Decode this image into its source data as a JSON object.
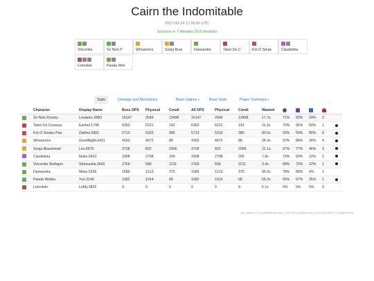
{
  "header": {
    "title": "Cairn the Indomitable",
    "timestamp": "2017-03-14 17:26:02 UTC",
    "result": "Success in 7 minutes 29.0 seconds"
  },
  "players": [
    {
      "name": "Vincentia",
      "icons": [
        "#6fa94e",
        "#8a8a8a"
      ]
    },
    {
      "name": "Sir Nick P",
      "icons": [
        "#6fa94e",
        "#8a8a8a"
      ]
    },
    {
      "name": "Whoarriors",
      "icons": [
        "#e0a43a"
      ]
    },
    {
      "name": "Sonja Brav",
      "icons": [
        "#e0a43a",
        "#8a8a8a"
      ]
    },
    {
      "name": "Dareandra",
      "icons": [
        "#6fa94e"
      ]
    },
    {
      "name": "Talon De C",
      "icons": [
        "#b0446a"
      ]
    },
    {
      "name": "Kot O Smak",
      "icons": [
        "#c94a4a"
      ]
    },
    {
      "name": "Claudishia",
      "icons": [
        "#b05bc4",
        "#8a8a8a"
      ]
    },
    {
      "name": "Lemolelo",
      "icons": [
        "#b05050",
        "#8a8a8a",
        "#8a8a8a"
      ]
    },
    {
      "name": "Panda Wiel",
      "icons": [
        "#6fa94e",
        "#8a8a8a"
      ]
    }
  ],
  "tabs": [
    {
      "label": "Stats",
      "active": true
    },
    {
      "label": "Damage and Mechanics",
      "active": false
    },
    {
      "label": "Boon Uptime",
      "active": false,
      "dropdown": true
    },
    {
      "label": "Boon Stats",
      "active": false
    },
    {
      "label": "Player Summary",
      "active": false,
      "dropdown": true
    }
  ],
  "table": {
    "columns": [
      "Character",
      "Display Name",
      "Boss DPS",
      "Physical",
      "Condi",
      "All DPS",
      "Physical",
      "Condi",
      "Wasted"
    ],
    "icon_columns": [
      "dodge-icon",
      "might-icon",
      "fury-icon",
      "down-icon"
    ],
    "rows": [
      {
        "color": "#6fa94e",
        "cells": [
          "Sir Nick Pyszny",
          "Leniwiec.6983",
          "16147",
          "2649",
          "13498",
          "16147",
          "2649",
          "13498",
          "17.7s",
          "71%",
          "83%",
          "24%",
          "3"
        ],
        "dead": false
      },
      {
        "color": "#b0446a",
        "cells": [
          "Talon De Couteau",
          "Ezehel.1748",
          "6363",
          "6221",
          "142",
          "6363",
          "6221",
          "142",
          "11.2s",
          "70%",
          "95%",
          "50%",
          "1"
        ],
        "dead": true
      },
      {
        "color": "#c94a4a",
        "cells": [
          "Kot O Smaku Psa",
          "Zaithra.5901",
          "5713",
          "5333",
          "380",
          "5713",
          "5333",
          "380",
          "80.5s",
          "93%",
          "59%",
          "80%",
          "8"
        ],
        "dead": true
      },
      {
        "color": "#e0a43a",
        "cells": [
          "Whoarriors",
          "GoodNight.6431",
          "4160",
          "4072",
          "88",
          "4160",
          "4072",
          "88",
          "28.3s",
          "97%",
          "86%",
          "28%",
          "4"
        ],
        "dead": true
      },
      {
        "color": "#e0a43a",
        "cells": [
          "Sonja Braveheart",
          "Lex.8675",
          "3728",
          "822",
          "2906",
          "3728",
          "822",
          "2906",
          "21.1s",
          "67%",
          "77%",
          "46%",
          "3"
        ],
        "dead": true
      },
      {
        "color": "#b05bc4",
        "cells": [
          "Claudishia",
          "Maks.6423",
          "2908",
          "2708",
          "200",
          "2908",
          "2708",
          "200",
          "7.8s",
          "73%",
          "90%",
          "22%",
          "2"
        ],
        "dead": true
      },
      {
        "color": "#6fa94e",
        "cells": [
          "Vincentia Slothgon",
          "Sthenastia.3642",
          "2769",
          "558",
          "2211",
          "2769",
          "558",
          "2211",
          "3.4s",
          "68%",
          "72%",
          "22%",
          "1"
        ],
        "dead": true
      },
      {
        "color": "#6fa94e",
        "cells": [
          "Dareandra",
          "Milou.5106",
          "1589",
          "1213",
          "375",
          "1589",
          "1213",
          "375",
          "56.6s",
          "78%",
          "88%",
          "9%",
          "1"
        ],
        "dead": false
      },
      {
        "color": "#6fa94e",
        "cells": [
          "Panda Wielka",
          "Yuri.2140",
          "1082",
          "1014",
          "68",
          "1082",
          "1014",
          "68",
          "55.2s",
          "56%",
          "67%",
          "35%",
          "1"
        ],
        "dead": true
      },
      {
        "color": "#b05050",
        "cells": [
          "Lemolelo",
          "LeMy.3826",
          "0",
          "0",
          "0",
          "0",
          "0",
          "0",
          "5.1s",
          "0%",
          "0%",
          "0%",
          "0"
        ],
        "dead": false
      }
    ]
  },
  "footer": "raid_heroes 1.1.0 gl.bestfox by MaxL | 20170314-180332.evtc | EVTC20170310 | 17184(0x4322)"
}
